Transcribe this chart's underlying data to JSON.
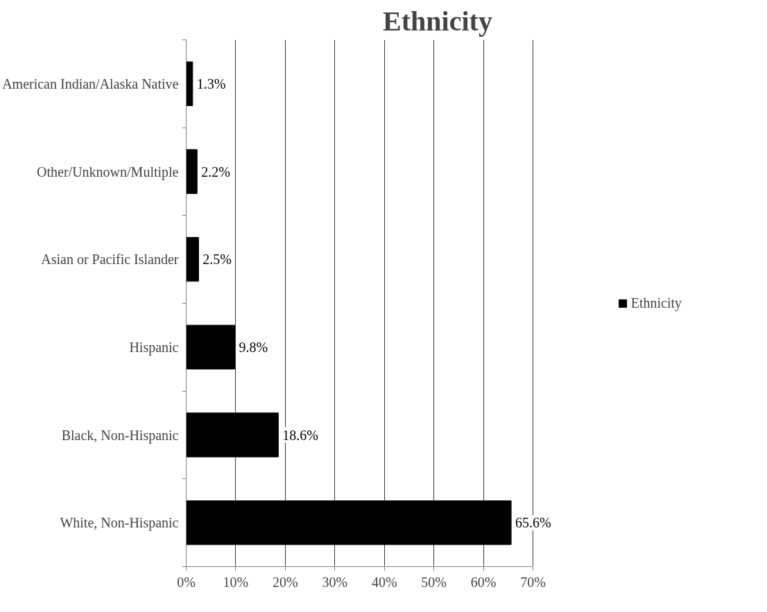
{
  "chart_data": {
    "type": "bar",
    "orientation": "horizontal",
    "title": "Ethnicity",
    "categories": [
      "American Indian/Alaska Native",
      "Other/Unknown/Multiple",
      "Asian or Pacific Islander",
      "Hispanic",
      "Black, Non-Hispanic",
      "White, Non-Hispanic"
    ],
    "series": [
      {
        "name": "Ethnicity",
        "color": "#000000",
        "values": [
          1.3,
          2.2,
          2.5,
          9.8,
          18.6,
          65.6
        ],
        "value_labels": [
          "1.3%",
          "2.2%",
          "2.5%",
          "9.8%",
          "18.6%",
          "65.6%"
        ]
      }
    ],
    "xlim": [
      0,
      70
    ],
    "xticks": [
      {
        "value": 0,
        "label": "0%"
      },
      {
        "value": 10,
        "label": "10%"
      },
      {
        "value": 20,
        "label": "20%"
      },
      {
        "value": 30,
        "label": "30%"
      },
      {
        "value": 40,
        "label": "40%"
      },
      {
        "value": 50,
        "label": "50%"
      },
      {
        "value": 60,
        "label": "60%"
      },
      {
        "value": 70,
        "label": "70%"
      }
    ],
    "grid": "x",
    "legend": "right"
  }
}
